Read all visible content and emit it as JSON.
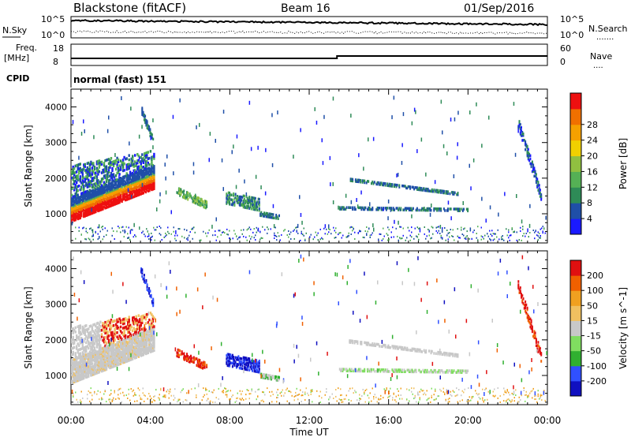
{
  "header": {
    "station": "Blackstone (fitACF)",
    "beam": "Beam 16",
    "date": "01/Sep/2016"
  },
  "noise_panel": {
    "left_label": "N.Sky",
    "right_label": "N.Search",
    "left_ticks": [
      "10^5",
      "10^0"
    ],
    "right_ticks": [
      "10^5",
      "10^0"
    ],
    "left_key": "-",
    "right_key": "......."
  },
  "freq_panel": {
    "left_label_1": "Freq.",
    "left_label_2": "[MHz]",
    "right_label": "Nave",
    "right_key": "....",
    "left_ticks": [
      "18",
      "8"
    ],
    "right_ticks": [
      "60",
      "0"
    ]
  },
  "cpid": {
    "label": "CPID",
    "value": "normal (fast) 151"
  },
  "chart_data": [
    {
      "type": "heatmap",
      "name": "power",
      "ylabel": "Slant Range [km]",
      "ylim": [
        180,
        4500
      ],
      "y_ticks": [
        1000,
        2000,
        3000,
        4000
      ],
      "x_ticks": [
        "00:00",
        "04:00",
        "08:00",
        "12:00",
        "16:00",
        "20:00",
        "00:00"
      ],
      "colorbar": {
        "label": "Power [dB]",
        "tick_labels": [
          "4",
          "8",
          "12",
          "16",
          "20",
          "24",
          "28"
        ],
        "colors": [
          "#1a1aff",
          "#1f4fa8",
          "#2e8b57",
          "#55b055",
          "#90c040",
          "#f0d000",
          "#f5a000",
          "#f07000",
          "#ee1010"
        ]
      }
    },
    {
      "type": "heatmap",
      "name": "velocity",
      "ylabel": "Slant Range [km]",
      "xlabel": "Time UT",
      "ylim": [
        180,
        4500
      ],
      "y_ticks": [
        1000,
        2000,
        3000,
        4000
      ],
      "x_ticks": [
        "00:00",
        "04:00",
        "08:00",
        "12:00",
        "16:00",
        "20:00",
        "00:00"
      ],
      "colorbar": {
        "label": "Velocity [m s^-1]",
        "tick_labels": [
          "200",
          "100",
          "50",
          "15",
          "-15",
          "-50",
          "-100",
          "-200"
        ],
        "colors": [
          "#1010c0",
          "#3050ff",
          "#30b030",
          "#80dd60",
          "#c8c8c8",
          "#f0c060",
          "#f0a020",
          "#f06000",
          "#e01010"
        ]
      }
    }
  ]
}
